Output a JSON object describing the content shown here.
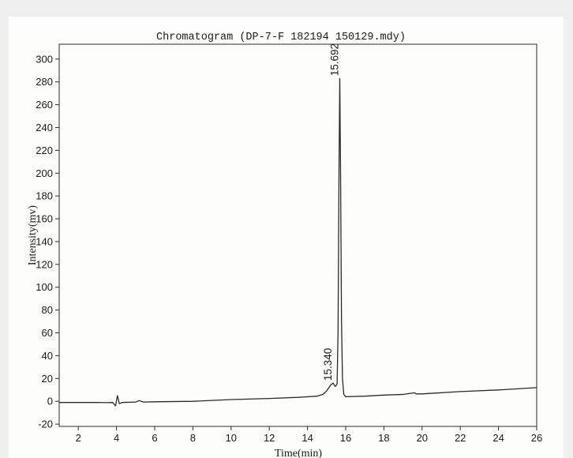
{
  "chart_data": {
    "type": "line",
    "title": "Chromatogram (DP-7-F 182194 150129.mdy)",
    "xlabel": "Time(min)",
    "ylabel": "Intensity(mv)",
    "xlim": [
      1,
      26
    ],
    "ylim": [
      -22,
      313
    ],
    "x_ticks": [
      2,
      4,
      6,
      8,
      10,
      12,
      14,
      16,
      18,
      20,
      22,
      24,
      26
    ],
    "y_ticks": [
      -20,
      0,
      20,
      40,
      60,
      80,
      100,
      120,
      140,
      160,
      180,
      200,
      220,
      240,
      260,
      280,
      300
    ],
    "grid": false,
    "legend": "none",
    "line_color": "#2a2a2a",
    "series": [
      {
        "points": [
          [
            1.0,
            -1.0
          ],
          [
            2.0,
            -1.0
          ],
          [
            3.0,
            -1.0
          ],
          [
            3.5,
            -1.2
          ],
          [
            3.8,
            -1.0
          ],
          [
            3.95,
            -4.0
          ],
          [
            4.05,
            5.0
          ],
          [
            4.15,
            -2.0
          ],
          [
            4.3,
            -1.0
          ],
          [
            5.0,
            -0.6
          ],
          [
            5.2,
            0.6
          ],
          [
            5.4,
            -0.6
          ],
          [
            6.0,
            -0.4
          ],
          [
            8.0,
            0.0
          ],
          [
            10.0,
            1.5
          ],
          [
            12.0,
            2.5
          ],
          [
            13.5,
            3.5
          ],
          [
            14.5,
            4.5
          ],
          [
            14.8,
            6.0
          ],
          [
            15.0,
            9.0
          ],
          [
            15.2,
            14.0
          ],
          [
            15.34,
            16.0
          ],
          [
            15.45,
            13.0
          ],
          [
            15.55,
            15.0
          ],
          [
            15.6,
            60.0
          ],
          [
            15.65,
            200.0
          ],
          [
            15.692,
            283.0
          ],
          [
            15.73,
            200.0
          ],
          [
            15.78,
            70.0
          ],
          [
            15.83,
            20.0
          ],
          [
            15.9,
            6.0
          ],
          [
            16.0,
            4.0
          ],
          [
            17.0,
            4.5
          ],
          [
            18.0,
            5.5
          ],
          [
            19.0,
            6.0
          ],
          [
            19.6,
            7.5
          ],
          [
            19.7,
            6.5
          ],
          [
            20.0,
            6.5
          ],
          [
            22.0,
            8.5
          ],
          [
            24.0,
            10.0
          ],
          [
            26.0,
            12.0
          ]
        ]
      }
    ],
    "peak_labels": [
      {
        "x": 15.692,
        "y": 283,
        "text": "15.692"
      },
      {
        "x": 15.34,
        "y": 16,
        "text": "15.340"
      }
    ]
  }
}
